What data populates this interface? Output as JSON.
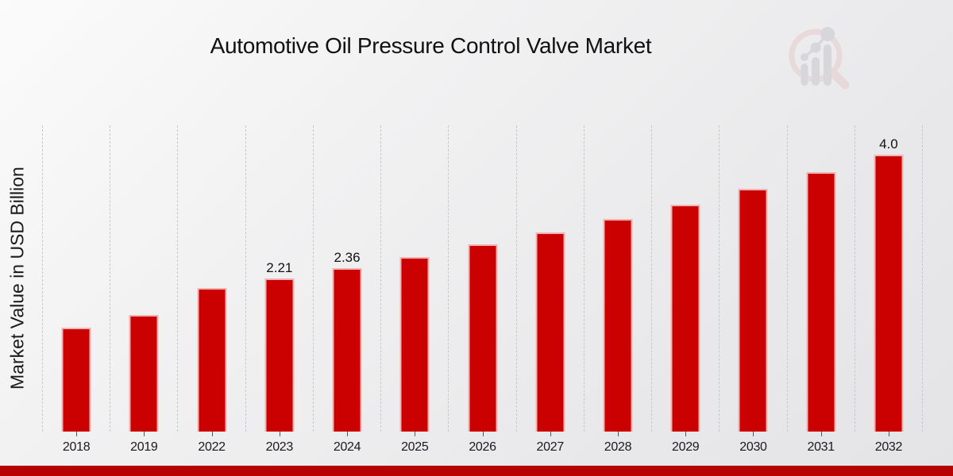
{
  "title": "Automotive Oil Pressure Control Valve Market",
  "y_axis_label": "Market Value in USD Billion",
  "chart_data": {
    "type": "bar",
    "title": "Automotive Oil Pressure Control Valve Market",
    "xlabel": "",
    "ylabel": "Market Value in USD Billion",
    "categories": [
      "2018",
      "2019",
      "2022",
      "2023",
      "2024",
      "2025",
      "2026",
      "2027",
      "2028",
      "2029",
      "2030",
      "2031",
      "2032"
    ],
    "values": [
      1.5,
      1.69,
      2.07,
      2.21,
      2.36,
      2.52,
      2.7,
      2.88,
      3.07,
      3.28,
      3.51,
      3.75,
      4.0
    ],
    "point_labels": [
      "",
      "",
      "",
      "2.21",
      "2.36",
      "",
      "",
      "",
      "",
      "",
      "",
      "",
      "4.0"
    ],
    "ylim": [
      0,
      4.42
    ],
    "grid": "vertical-dashed",
    "legend": "none"
  },
  "branding": {
    "logo_icon": "magnifier-bar-chart-watermark"
  },
  "colors": {
    "bar_red": "#cb0101",
    "accent_strip_red": "#b60202",
    "gridline_gray": "#c8c8c8",
    "logo_pink": "#e6cbcb",
    "logo_gray": "#c8c8cd"
  }
}
